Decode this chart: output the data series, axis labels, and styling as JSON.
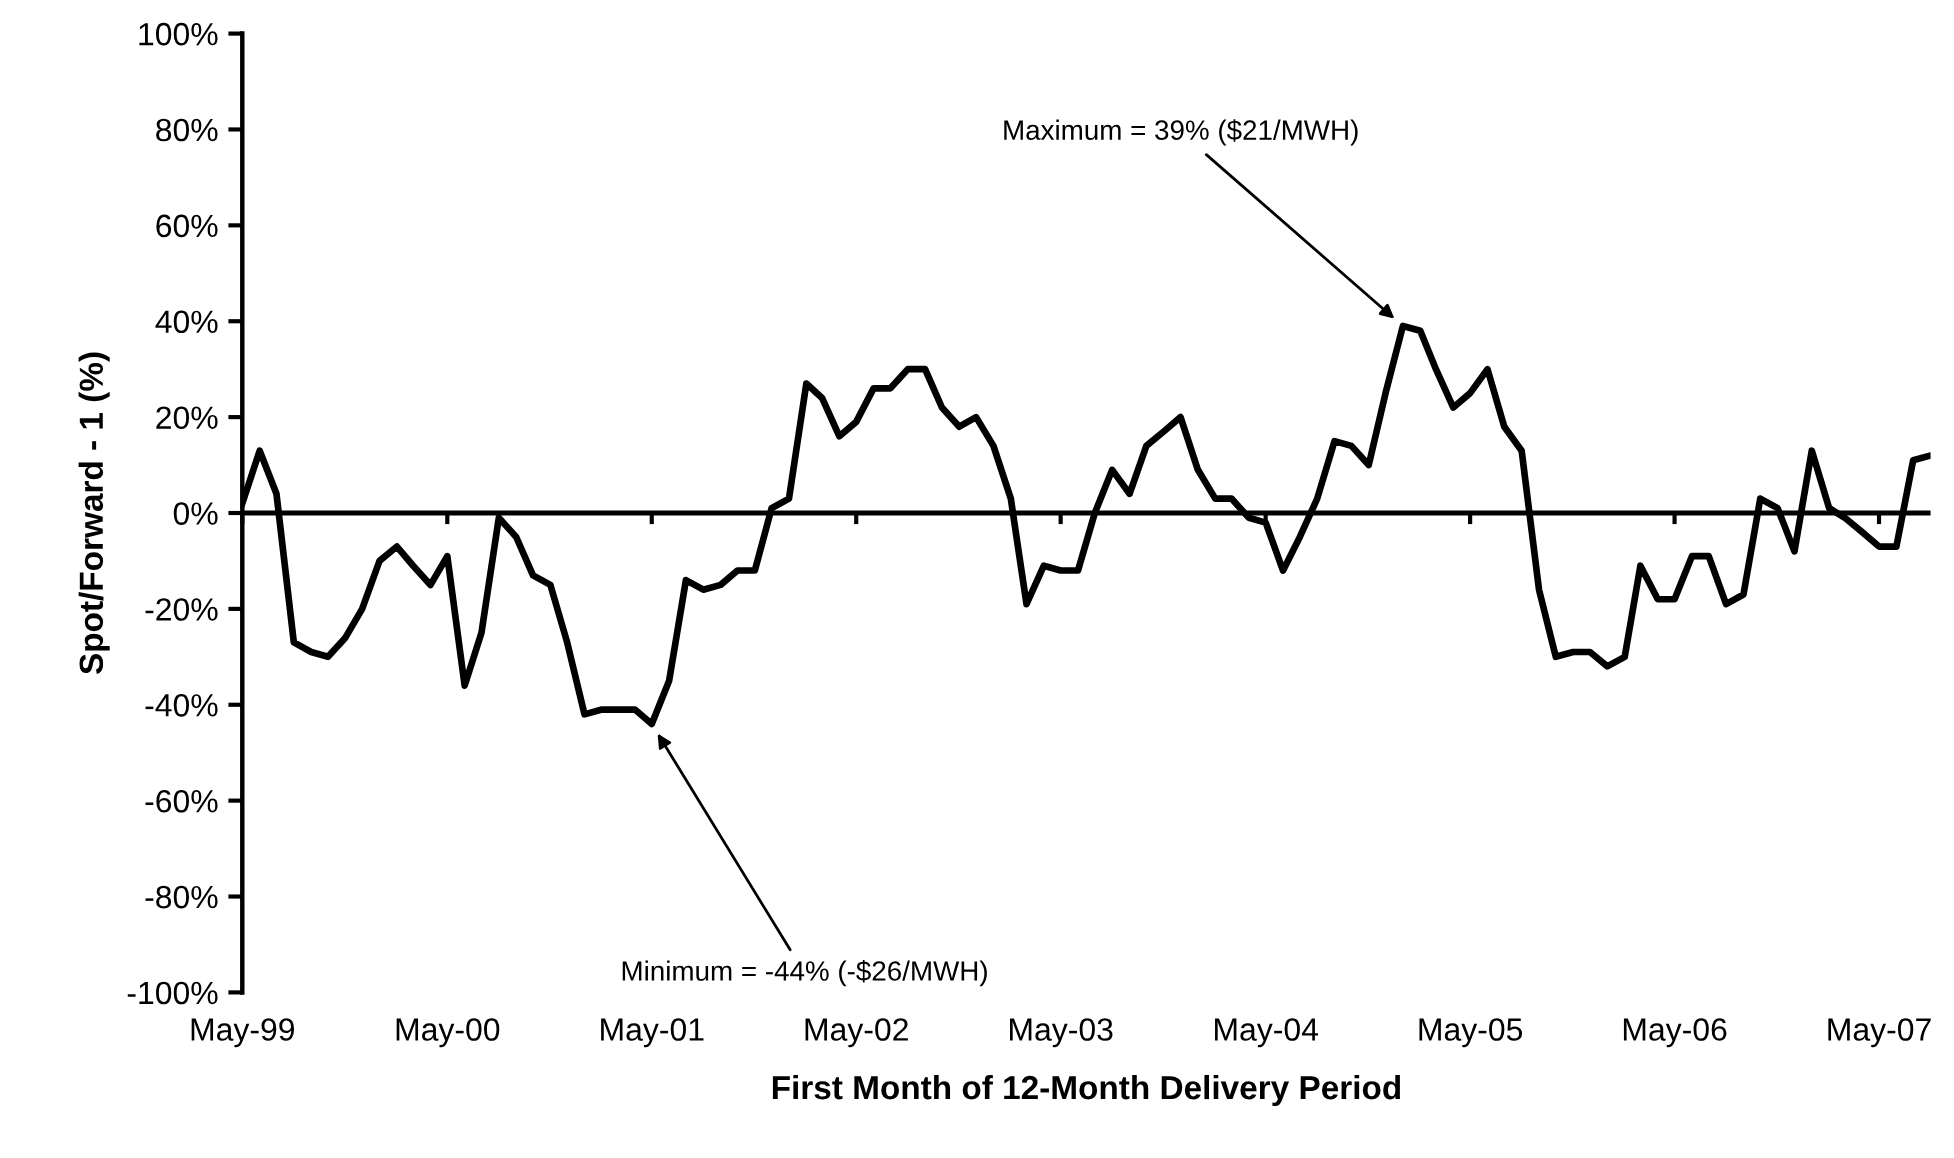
{
  "chart_data": {
    "type": "line",
    "xlabel": "First Month of 12-Month Delivery Period",
    "ylabel": "Spot/Forward - 1 (%)",
    "x": [
      "1999-05",
      "1999-06",
      "1999-07",
      "1999-08",
      "1999-09",
      "1999-10",
      "1999-11",
      "1999-12",
      "2000-01",
      "2000-02",
      "2000-03",
      "2000-04",
      "2000-05",
      "2000-06",
      "2000-07",
      "2000-08",
      "2000-09",
      "2000-10",
      "2000-11",
      "2000-12",
      "2001-01",
      "2001-02",
      "2001-03",
      "2001-04",
      "2001-05",
      "2001-06",
      "2001-07",
      "2001-08",
      "2001-09",
      "2001-10",
      "2001-11",
      "2001-12",
      "2002-01",
      "2002-02",
      "2002-03",
      "2002-04",
      "2002-05",
      "2002-06",
      "2002-07",
      "2002-08",
      "2002-09",
      "2002-10",
      "2002-11",
      "2002-12",
      "2003-01",
      "2003-02",
      "2003-03",
      "2003-04",
      "2003-05",
      "2003-06",
      "2003-07",
      "2003-08",
      "2003-09",
      "2003-10",
      "2003-11",
      "2003-12",
      "2004-01",
      "2004-02",
      "2004-03",
      "2004-04",
      "2004-05",
      "2004-06",
      "2004-07",
      "2004-08",
      "2004-09",
      "2004-10",
      "2004-11",
      "2004-12",
      "2005-01",
      "2005-02",
      "2005-03",
      "2005-04",
      "2005-05",
      "2005-06",
      "2005-07",
      "2005-08",
      "2005-09",
      "2005-10",
      "2005-11",
      "2005-12",
      "2006-01",
      "2006-02",
      "2006-03",
      "2006-04",
      "2006-05",
      "2006-06",
      "2006-07",
      "2006-08",
      "2006-09",
      "2006-10",
      "2006-11",
      "2006-12",
      "2007-01",
      "2007-02",
      "2007-03",
      "2007-04",
      "2007-05",
      "2007-06",
      "2007-07",
      "2007-08"
    ],
    "series": [
      {
        "color": "#000000",
        "values": [
          2,
          13,
          4,
          -27,
          -29,
          -30,
          -26,
          -20,
          -10,
          -7,
          -11,
          -15,
          -9,
          -36,
          -25,
          -1,
          -5,
          -13,
          -15,
          -27,
          -42,
          -41,
          -41,
          -41,
          -44,
          -35,
          -14,
          -16,
          -15,
          -12,
          -12,
          1,
          3,
          27,
          24,
          16,
          19,
          26,
          26,
          30,
          30,
          22,
          18,
          20,
          14,
          3,
          -19,
          -11,
          -12,
          -12,
          0,
          9,
          4,
          14,
          17,
          20,
          9,
          3,
          3,
          -1,
          -2,
          -12,
          -5,
          3,
          15,
          14,
          10,
          25,
          39,
          38,
          30,
          22,
          25,
          30,
          18,
          13,
          -16,
          -30,
          -29,
          -29,
          -32,
          -30,
          -11,
          -18,
          -18,
          -9,
          -9,
          -19,
          -17,
          3,
          1,
          -8,
          13,
          1,
          -1,
          -4,
          -7,
          -7,
          11,
          12
        ]
      }
    ],
    "xlim": [
      "1999-05",
      "2007-08"
    ],
    "xticks": [
      {
        "value": "1999-05",
        "label": "May-99"
      },
      {
        "value": "2000-05",
        "label": "May-00"
      },
      {
        "value": "2001-05",
        "label": "May-01"
      },
      {
        "value": "2002-05",
        "label": "May-02"
      },
      {
        "value": "2003-05",
        "label": "May-03"
      },
      {
        "value": "2004-05",
        "label": "May-04"
      },
      {
        "value": "2005-05",
        "label": "May-05"
      },
      {
        "value": "2006-05",
        "label": "May-06"
      },
      {
        "value": "2007-05",
        "label": "May-07"
      }
    ],
    "ylim": [
      -100,
      100
    ],
    "yticks": [
      {
        "value": -100,
        "label": "-100%"
      },
      {
        "value": -80,
        "label": "-80%"
      },
      {
        "value": -60,
        "label": "-60%"
      },
      {
        "value": -40,
        "label": "-40%"
      },
      {
        "value": -20,
        "label": "-20%"
      },
      {
        "value": 0,
        "label": "0%"
      },
      {
        "value": 20,
        "label": "20%"
      },
      {
        "value": 40,
        "label": "40%"
      },
      {
        "value": 60,
        "label": "60%"
      },
      {
        "value": 80,
        "label": "80%"
      },
      {
        "value": 100,
        "label": "100%"
      }
    ],
    "annotations": [
      {
        "text": "Maximum = 39% ($21/MWH)",
        "x": "2005-01",
        "y": 39
      },
      {
        "text": "Minimum = -44% (-$26/MWH)",
        "x": "2001-05",
        "y": -44
      }
    ],
    "grid": false,
    "ref_lines": [
      {
        "axis": "y",
        "value": 0,
        "color": "#000000"
      }
    ],
    "marker": "none",
    "line_style": "solid"
  }
}
